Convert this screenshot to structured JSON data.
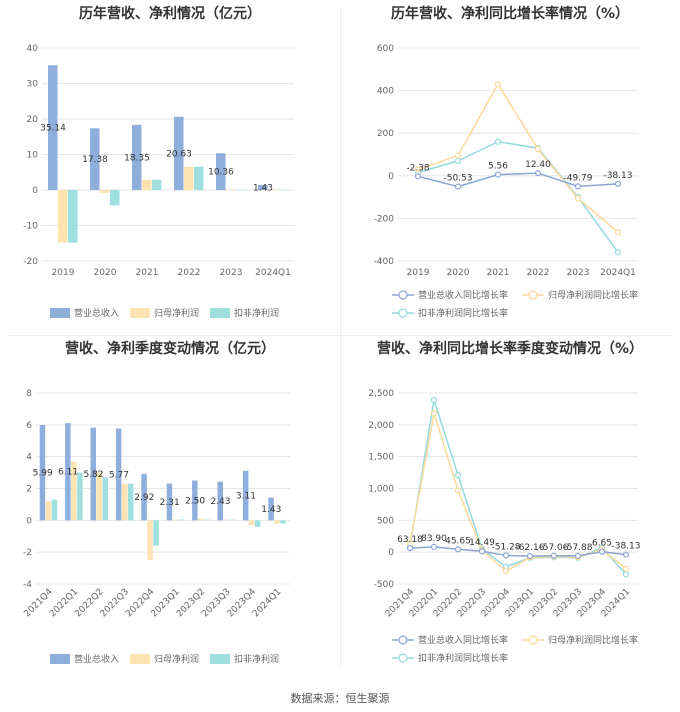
{
  "source": "数据来源：恒生聚源",
  "colors": {
    "revenue": "#8eaedc",
    "netprofit": "#fde3b1",
    "deducted": "#9edfe0"
  },
  "chart_data": [
    {
      "id": "annual-amount",
      "type": "bar",
      "title": "历年营收、净利情况（亿元）",
      "categories": [
        "2019",
        "2020",
        "2021",
        "2022",
        "2023",
        "2024Q1"
      ],
      "yticks": [
        "40",
        "30",
        "20",
        "10",
        "0",
        "-10",
        "-20"
      ],
      "ylim": [
        -20,
        40
      ],
      "series": [
        {
          "name": "营业总收入",
          "values": [
            35.14,
            17.38,
            18.35,
            20.63,
            10.36,
            1.43
          ],
          "labels": [
            "35.14",
            "17.38",
            "18.35",
            "20.63",
            "10.36",
            "1.43"
          ]
        },
        {
          "name": "归母净利润",
          "values": [
            -14.8,
            -0.8,
            2.9,
            6.5,
            0.2,
            0.1
          ]
        },
        {
          "name": "扣非净利润",
          "values": [
            -14.8,
            -4.3,
            2.9,
            6.6,
            0.1,
            0.1
          ]
        }
      ],
      "legend_position": "bottom"
    },
    {
      "id": "annual-growth",
      "type": "line",
      "title": "历年营收、净利同比增长率情况（%）",
      "categories": [
        "2019",
        "2020",
        "2021",
        "2022",
        "2023",
        "2024Q1"
      ],
      "yticks": [
        "600",
        "400",
        "200",
        "0",
        "-200",
        "-400"
      ],
      "ylim": [
        -400,
        600
      ],
      "series": [
        {
          "name": "营业总收入同比增长率",
          "values": [
            -2.38,
            -50.53,
            5.56,
            12.4,
            -49.79,
            -38.13
          ],
          "labels": [
            "-2.38",
            "-50.53",
            "5.56",
            "12.40",
            "-49.79",
            "-38.13"
          ]
        },
        {
          "name": "归母净利润同比增长率",
          "values": [
            30,
            95,
            430,
            125,
            -105,
            -265
          ]
        },
        {
          "name": "扣非净利润同比增长率",
          "values": [
            15,
            70,
            160,
            130,
            -100,
            -360
          ]
        }
      ],
      "legend_position": "bottom"
    },
    {
      "id": "quarterly-amount",
      "type": "bar",
      "title": "营收、净利季度变动情况（亿元）",
      "categories": [
        "2021Q4",
        "2022Q1",
        "2022Q2",
        "2022Q3",
        "2022Q4",
        "2023Q1",
        "2023Q2",
        "2023Q3",
        "2023Q4",
        "2024Q1"
      ],
      "yticks": [
        "8",
        "6",
        "4",
        "2",
        "0",
        "-2",
        "-4"
      ],
      "ylim": [
        -4,
        8
      ],
      "series": [
        {
          "name": "营业总收入",
          "values": [
            5.99,
            6.11,
            5.82,
            5.77,
            2.92,
            2.31,
            2.5,
            2.43,
            3.11,
            1.43
          ],
          "labels": [
            "5.99",
            "6.11",
            "5.82",
            "5.77",
            "2.92",
            "2.31",
            "2.50",
            "2.43",
            "3.11",
            "1.43"
          ]
        },
        {
          "name": "归母净利润",
          "values": [
            1.2,
            3.7,
            3.0,
            2.3,
            -2.5,
            0.05,
            0.1,
            0.05,
            -0.3,
            -0.2
          ]
        },
        {
          "name": "扣非净利润",
          "values": [
            1.3,
            3.0,
            2.7,
            2.3,
            -1.6,
            0.05,
            0.05,
            0.05,
            -0.4,
            -0.2
          ]
        }
      ],
      "legend_position": "bottom"
    },
    {
      "id": "quarterly-growth",
      "type": "line",
      "title": "营收、净利同比增长率季度变动情况（%）",
      "categories": [
        "2021Q4",
        "2022Q1",
        "2022Q2",
        "2022Q3",
        "2022Q4",
        "2023Q1",
        "2023Q2",
        "2023Q3",
        "2023Q4",
        "2024Q1"
      ],
      "yticks": [
        "2,500",
        "2,000",
        "1,500",
        "1,000",
        "500",
        "0",
        "-500"
      ],
      "ylim": [
        -500,
        2500
      ],
      "series": [
        {
          "name": "营业总收入同比增长率",
          "values": [
            63.18,
            83.9,
            45.65,
            14.49,
            -51.28,
            -62.16,
            -57.06,
            -57.88,
            6.65,
            -38.13
          ],
          "labels": [
            "63.18",
            "83.90",
            "45.65",
            "14.49",
            "-51.28",
            "-62.16",
            "-57.06",
            "-57.88",
            "6.65",
            "-38.13"
          ]
        },
        {
          "name": "归母净利润同比增长率",
          "values": [
            130,
            2180,
            970,
            30,
            -300,
            -80,
            -70,
            -80,
            40,
            -260
          ]
        },
        {
          "name": "扣非净利润同比增长率",
          "values": [
            90,
            2390,
            1210,
            50,
            -230,
            -90,
            -80,
            -90,
            70,
            -350
          ]
        }
      ],
      "legend_position": "bottom"
    }
  ]
}
